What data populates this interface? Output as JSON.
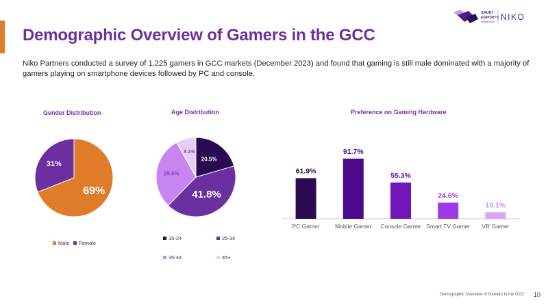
{
  "header": {
    "title": "Demographic Overview of Gamers in the GCC",
    "description": "Niko Partners conducted a survey of 1,225 gamers in GCC markets (December 2023) and found that gaming is still male dominated with a majority of gamers playing on smartphone devices followed by PC and console.",
    "accent_color": "#e07b2a",
    "title_color": "#6b2fa0"
  },
  "logo": {
    "brand_top": "SAUDI",
    "brand_mid": "ESPORTS",
    "brand_sub": "FEDERATION",
    "partner": "NIKO"
  },
  "footer": {
    "label": "Demographic Overview of Gamers in the GCC",
    "page": "10"
  },
  "chart_data": [
    {
      "type": "pie",
      "title": "Gender Distribution",
      "categories": [
        "Male",
        "Female"
      ],
      "values": [
        69,
        31
      ],
      "labels": [
        "69%",
        "31%"
      ],
      "colors": [
        "#e07b2a",
        "#6b2fa0"
      ],
      "legend": "bottom"
    },
    {
      "type": "pie",
      "title": "Age Distribution",
      "categories": [
        "15-24",
        "25-34",
        "35-44",
        "45+"
      ],
      "values": [
        20.5,
        41.8,
        29.6,
        8.1
      ],
      "labels": [
        "20.5%",
        "41.8%",
        "29.6%",
        "8.1%"
      ],
      "colors": [
        "#2a0a52",
        "#6b2fa0",
        "#c685f0",
        "#e6cdf6"
      ],
      "legend": "bottom"
    },
    {
      "type": "bar",
      "title": "Preference on Gaming Hardware",
      "categories": [
        "PC Gamer",
        "Mobile Gamer",
        "Console Gamer",
        "Smart TV Gamer",
        "VR Gamer"
      ],
      "values": [
        61.9,
        91.7,
        55.3,
        24.6,
        10.1
      ],
      "labels": [
        "61.9%",
        "91.7%",
        "55.3%",
        "24.6%",
        "10.1%"
      ],
      "colors": [
        "#2a0a52",
        "#4b0a8c",
        "#7016b8",
        "#a13ae6",
        "#d8a8f7"
      ],
      "label_colors": [
        "#2a0a52",
        "#4b0a8c",
        "#7016b8",
        "#a13ae6",
        "#c890f0"
      ],
      "ylim": [
        0,
        100
      ]
    }
  ]
}
